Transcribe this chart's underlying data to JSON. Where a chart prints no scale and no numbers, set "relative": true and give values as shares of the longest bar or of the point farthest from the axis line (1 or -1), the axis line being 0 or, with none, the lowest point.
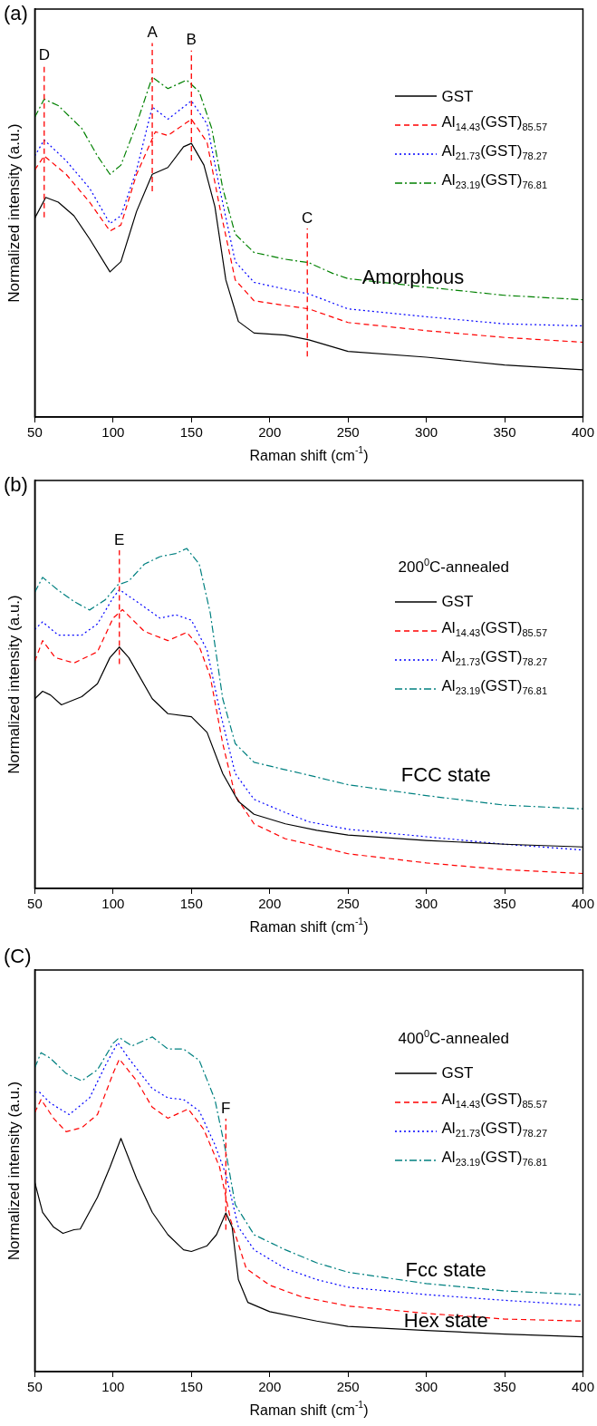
{
  "chart_data": [
    {
      "type": "line",
      "title": "(a)",
      "xlabel": "Raman shift (cm$^{-1}$)",
      "ylabel": "Normalized intensity (a.u.)",
      "relative": true,
      "xlim": [
        50,
        400
      ],
      "xticks": [
        50,
        100,
        150,
        200,
        250,
        300,
        350,
        400
      ],
      "grid": false,
      "legend": "top right",
      "annotations": [
        "Amorphous"
      ],
      "ref_lines": [
        {
          "axis": "x",
          "value": 56,
          "label": "D",
          "color": "#ff0000",
          "line_style": "dashed"
        },
        {
          "axis": "x",
          "value": 125,
          "label": "A",
          "color": "#ff0000",
          "line_style": "dashed"
        },
        {
          "axis": "x",
          "value": 150,
          "label": "B",
          "color": "#ff0000",
          "line_style": "dashed"
        },
        {
          "axis": "x",
          "value": 224,
          "label": "C",
          "color": "#ff0000",
          "line_style": "dashed"
        }
      ],
      "series": [
        {
          "name": "GST",
          "color": "#000000",
          "line_style": "solid",
          "x": [
            50,
            57,
            65,
            75,
            85,
            98,
            105,
            115,
            125,
            135,
            145,
            150,
            158,
            165,
            172,
            180,
            190,
            210,
            225,
            250,
            300,
            350,
            400
          ],
          "values": [
            0.585,
            0.646,
            0.632,
            0.592,
            0.524,
            0.427,
            0.457,
            0.605,
            0.714,
            0.734,
            0.795,
            0.805,
            0.741,
            0.619,
            0.403,
            0.281,
            0.247,
            0.241,
            0.227,
            0.193,
            0.176,
            0.153,
            0.139
          ]
        },
        {
          "name": "Al$_{14.43}$(GST)$_{85.57}$",
          "color": "#ff0000",
          "line_style": "dashed",
          "x": [
            50,
            56,
            70,
            85,
            98,
            105,
            115,
            127,
            135,
            150,
            160,
            168,
            178,
            190,
            210,
            225,
            250,
            300,
            350,
            400
          ],
          "values": [
            0.727,
            0.768,
            0.714,
            0.632,
            0.547,
            0.565,
            0.714,
            0.839,
            0.828,
            0.876,
            0.808,
            0.619,
            0.403,
            0.342,
            0.328,
            0.318,
            0.278,
            0.254,
            0.234,
            0.22
          ]
        },
        {
          "name": "Al$_{21.73}$(GST)$_{78.27}$",
          "color": "#0000ff",
          "line_style": "dotted",
          "x": [
            50,
            56,
            70,
            85,
            98,
            105,
            115,
            125,
            135,
            150,
            160,
            168,
            178,
            190,
            210,
            225,
            250,
            300,
            350,
            400
          ],
          "values": [
            0.768,
            0.815,
            0.754,
            0.673,
            0.569,
            0.592,
            0.727,
            0.912,
            0.876,
            0.93,
            0.862,
            0.673,
            0.457,
            0.396,
            0.376,
            0.362,
            0.318,
            0.295,
            0.274,
            0.268
          ]
        },
        {
          "name": "Al$_{23.19}$(GST)$_{76.81}$",
          "color": "#008000",
          "line_style": "dashdot",
          "x": [
            50,
            56,
            65,
            80,
            90,
            98,
            105,
            115,
            125,
            135,
            147,
            155,
            163,
            170,
            178,
            190,
            210,
            225,
            240,
            250,
            300,
            350,
            400
          ],
          "values": [
            0.882,
            0.935,
            0.916,
            0.849,
            0.768,
            0.714,
            0.741,
            0.862,
            1.0,
            0.966,
            0.991,
            0.957,
            0.849,
            0.673,
            0.538,
            0.484,
            0.464,
            0.454,
            0.423,
            0.407,
            0.382,
            0.358,
            0.345
          ]
        }
      ]
    },
    {
      "type": "line",
      "title": "(b)",
      "xlabel": "Raman shift (cm$^{-1}$)",
      "ylabel": "Normalized intensity (a.u.)",
      "relative": true,
      "xlim": [
        50,
        400
      ],
      "xticks": [
        50,
        100,
        150,
        200,
        250,
        300,
        350,
        400
      ],
      "grid": false,
      "legend": "top right",
      "legend_title": "200$^{0}$C-annealed",
      "annotations": [
        "FCC state"
      ],
      "ref_lines": [
        {
          "axis": "x",
          "value": 104,
          "label": "E",
          "color": "#ff0000",
          "line_style": "dashed"
        }
      ],
      "series": [
        {
          "name": "GST",
          "color": "#000000",
          "line_style": "solid",
          "x": [
            50,
            55,
            60,
            67,
            80,
            90,
            98,
            104,
            110,
            125,
            135,
            150,
            160,
            170,
            180,
            190,
            210,
            230,
            250,
            300,
            350,
            400
          ],
          "values": [
            0.558,
            0.58,
            0.569,
            0.54,
            0.564,
            0.602,
            0.679,
            0.71,
            0.679,
            0.558,
            0.514,
            0.505,
            0.459,
            0.338,
            0.256,
            0.218,
            0.19,
            0.171,
            0.157,
            0.141,
            0.13,
            0.122
          ]
        },
        {
          "name": "Al$_{14.43}$(GST)$_{85.57}$",
          "color": "#ff0000",
          "line_style": "dashed",
          "x": [
            50,
            55,
            63,
            75,
            90,
            100,
            106,
            120,
            135,
            147,
            155,
            162,
            170,
            178,
            190,
            210,
            225,
            250,
            300,
            350,
            400
          ],
          "values": [
            0.668,
            0.729,
            0.679,
            0.663,
            0.696,
            0.795,
            0.82,
            0.756,
            0.729,
            0.753,
            0.712,
            0.624,
            0.426,
            0.273,
            0.19,
            0.146,
            0.13,
            0.102,
            0.075,
            0.055,
            0.044
          ]
        },
        {
          "name": "Al$_{21.73}$(GST)$_{78.27}$",
          "color": "#0000ff",
          "line_style": "dotted",
          "x": [
            50,
            55,
            65,
            80,
            90,
            100,
            104,
            115,
            130,
            140,
            150,
            160,
            168,
            178,
            190,
            210,
            225,
            250,
            300,
            350,
            400
          ],
          "values": [
            0.762,
            0.784,
            0.745,
            0.745,
            0.778,
            0.855,
            0.879,
            0.844,
            0.795,
            0.805,
            0.789,
            0.701,
            0.525,
            0.338,
            0.262,
            0.223,
            0.196,
            0.174,
            0.152,
            0.13,
            0.113
          ]
        },
        {
          "name": "Al$_{23.19}$(GST)$_{76.81}$",
          "color": "#008080",
          "line_style": "dashdot",
          "x": [
            50,
            55,
            65,
            75,
            85,
            95,
            103,
            110,
            120,
            130,
            140,
            147,
            155,
            162,
            170,
            178,
            190,
            210,
            225,
            250,
            300,
            350,
            400
          ],
          "values": [
            0.871,
            0.915,
            0.877,
            0.844,
            0.819,
            0.849,
            0.893,
            0.904,
            0.954,
            0.976,
            0.985,
            1.0,
            0.954,
            0.811,
            0.558,
            0.426,
            0.371,
            0.349,
            0.333,
            0.305,
            0.273,
            0.245,
            0.234
          ]
        }
      ]
    },
    {
      "type": "line",
      "title": "(C)",
      "xlabel": "Raman shift (cm$^{-1}$)",
      "ylabel": "Normalized intensity (a.u.)",
      "relative": true,
      "xlim": [
        50,
        400
      ],
      "xticks": [
        50,
        100,
        150,
        200,
        250,
        300,
        350,
        400
      ],
      "grid": false,
      "legend": "top right",
      "legend_title": "400$^{0}$C-annealed",
      "annotations": [
        "Fcc state",
        "Hex state"
      ],
      "ref_lines": [
        {
          "axis": "x",
          "value": 172,
          "label": "F",
          "color": "#ff0000",
          "line_style": "dashed"
        }
      ],
      "series": [
        {
          "name": "GST",
          "color": "#000000",
          "line_style": "solid",
          "x": [
            50,
            55,
            62,
            68,
            75,
            79,
            90,
            98,
            105,
            115,
            125,
            135,
            145,
            150,
            160,
            166,
            172,
            176,
            180,
            186,
            200,
            230,
            250,
            300,
            350,
            400
          ],
          "values": [
            0.566,
            0.476,
            0.432,
            0.413,
            0.424,
            0.426,
            0.521,
            0.611,
            0.697,
            0.577,
            0.476,
            0.409,
            0.364,
            0.359,
            0.376,
            0.409,
            0.474,
            0.432,
            0.275,
            0.207,
            0.179,
            0.151,
            0.135,
            0.123,
            0.112,
            0.104
          ]
        },
        {
          "name": "Al$_{14.43}$(GST)$_{85.57}$",
          "color": "#ff0000",
          "line_style": "dashed",
          "x": [
            50,
            54,
            62,
            70,
            80,
            90,
            100,
            104,
            115,
            125,
            135,
            148,
            158,
            168,
            175,
            185,
            200,
            220,
            250,
            300,
            350,
            400
          ],
          "values": [
            0.774,
            0.813,
            0.757,
            0.717,
            0.729,
            0.768,
            0.891,
            0.934,
            0.869,
            0.79,
            0.757,
            0.785,
            0.723,
            0.611,
            0.454,
            0.308,
            0.258,
            0.224,
            0.196,
            0.174,
            0.157,
            0.151
          ]
        },
        {
          "name": "Al$_{21.73}$(GST)$_{78.27}$",
          "color": "#0000ff",
          "line_style": "dotted",
          "x": [
            50,
            53,
            60,
            72,
            85,
            95,
            103,
            110,
            125,
            135,
            145,
            155,
            165,
            172,
            180,
            190,
            210,
            230,
            250,
            300,
            350,
            400
          ],
          "values": [
            0.835,
            0.835,
            0.802,
            0.768,
            0.818,
            0.914,
            0.983,
            0.936,
            0.846,
            0.818,
            0.813,
            0.779,
            0.678,
            0.589,
            0.432,
            0.364,
            0.308,
            0.275,
            0.252,
            0.23,
            0.213,
            0.198
          ]
        },
        {
          "name": "Al$_{23.19}$(GST)$_{76.81}$",
          "color": "#008080",
          "line_style": "dashdot",
          "x": [
            50,
            54,
            60,
            70,
            80,
            90,
            100,
            104,
            112,
            125,
            135,
            145,
            155,
            165,
            172,
            178,
            190,
            210,
            230,
            250,
            300,
            350,
            400
          ],
          "values": [
            0.908,
            0.953,
            0.936,
            0.891,
            0.869,
            0.902,
            0.981,
            0.998,
            0.973,
            1.0,
            0.964,
            0.964,
            0.93,
            0.813,
            0.656,
            0.499,
            0.409,
            0.364,
            0.325,
            0.297,
            0.263,
            0.241,
            0.23
          ]
        }
      ]
    }
  ]
}
